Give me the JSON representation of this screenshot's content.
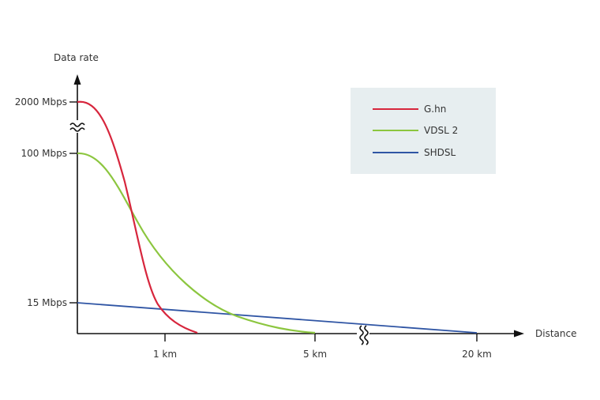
{
  "chart_data": {
    "type": "line",
    "ylabel": "Data rate",
    "xlabel": "Distance",
    "x_ticks": [
      "1 km",
      "5 km",
      "20 km"
    ],
    "y_ticks": [
      "15 Mbps",
      "100 Mbps",
      "2000 Mbps"
    ],
    "axis_breaks": {
      "x": "between 5 km and 20 km",
      "y": "between 100 Mbps and 2000 Mbps"
    },
    "legend_position": "top-right",
    "grid": false,
    "series": [
      {
        "name": "G.hn",
        "color": "#d7263d",
        "points": [
          {
            "x": "0 km",
            "y": "2000 Mbps"
          },
          {
            "x": "0.3 km",
            "y": "1100 Mbps"
          },
          {
            "x": "0.5 km",
            "y": "50 Mbps"
          },
          {
            "x": "1 km",
            "y": "3 Mbps"
          },
          {
            "x": "1.4 km",
            "y": "0 Mbps"
          }
        ]
      },
      {
        "name": "VDSL 2",
        "color": "#8cc63f",
        "points": [
          {
            "x": "0 km",
            "y": "100 Mbps"
          },
          {
            "x": "0.6 km",
            "y": "55 Mbps"
          },
          {
            "x": "1 km",
            "y": "35 Mbps"
          },
          {
            "x": "2 km",
            "y": "10 Mbps"
          },
          {
            "x": "3 km",
            "y": "3 Mbps"
          },
          {
            "x": "5 km",
            "y": "0 Mbps"
          }
        ]
      },
      {
        "name": "SHDSL",
        "color": "#2f55a4",
        "points": [
          {
            "x": "0 km",
            "y": "15 Mbps"
          },
          {
            "x": "5 km",
            "y": "7 Mbps"
          },
          {
            "x": "20 km",
            "y": "0 Mbps"
          }
        ]
      }
    ]
  }
}
